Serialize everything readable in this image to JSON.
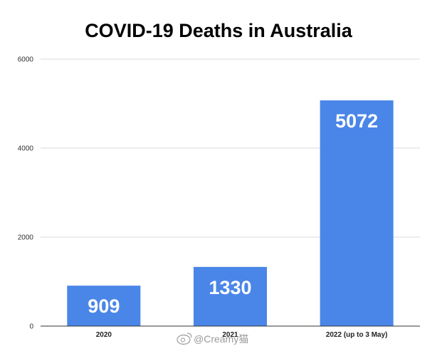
{
  "chart_data": {
    "type": "bar",
    "title": "COVID-19 Deaths in Australia",
    "xlabel": "",
    "ylabel": "",
    "categories": [
      "2020",
      "2021",
      "2022 (up to 3 May)"
    ],
    "values": [
      909,
      1330,
      5072
    ],
    "data_labels": [
      "909",
      "1330",
      "5072"
    ],
    "ylim": [
      0,
      6000
    ],
    "yticks": [
      0,
      2000,
      4000,
      6000
    ],
    "ytick_labels": [
      "0",
      "2000",
      "4000",
      "6000"
    ],
    "grid": true,
    "legend": "none",
    "bar_color": "#4a86e8",
    "gridline_color": "#d9d9d9",
    "axis_color": "#333333"
  },
  "watermark": {
    "text": "@Creamy猫",
    "icon": "weibo-icon"
  }
}
